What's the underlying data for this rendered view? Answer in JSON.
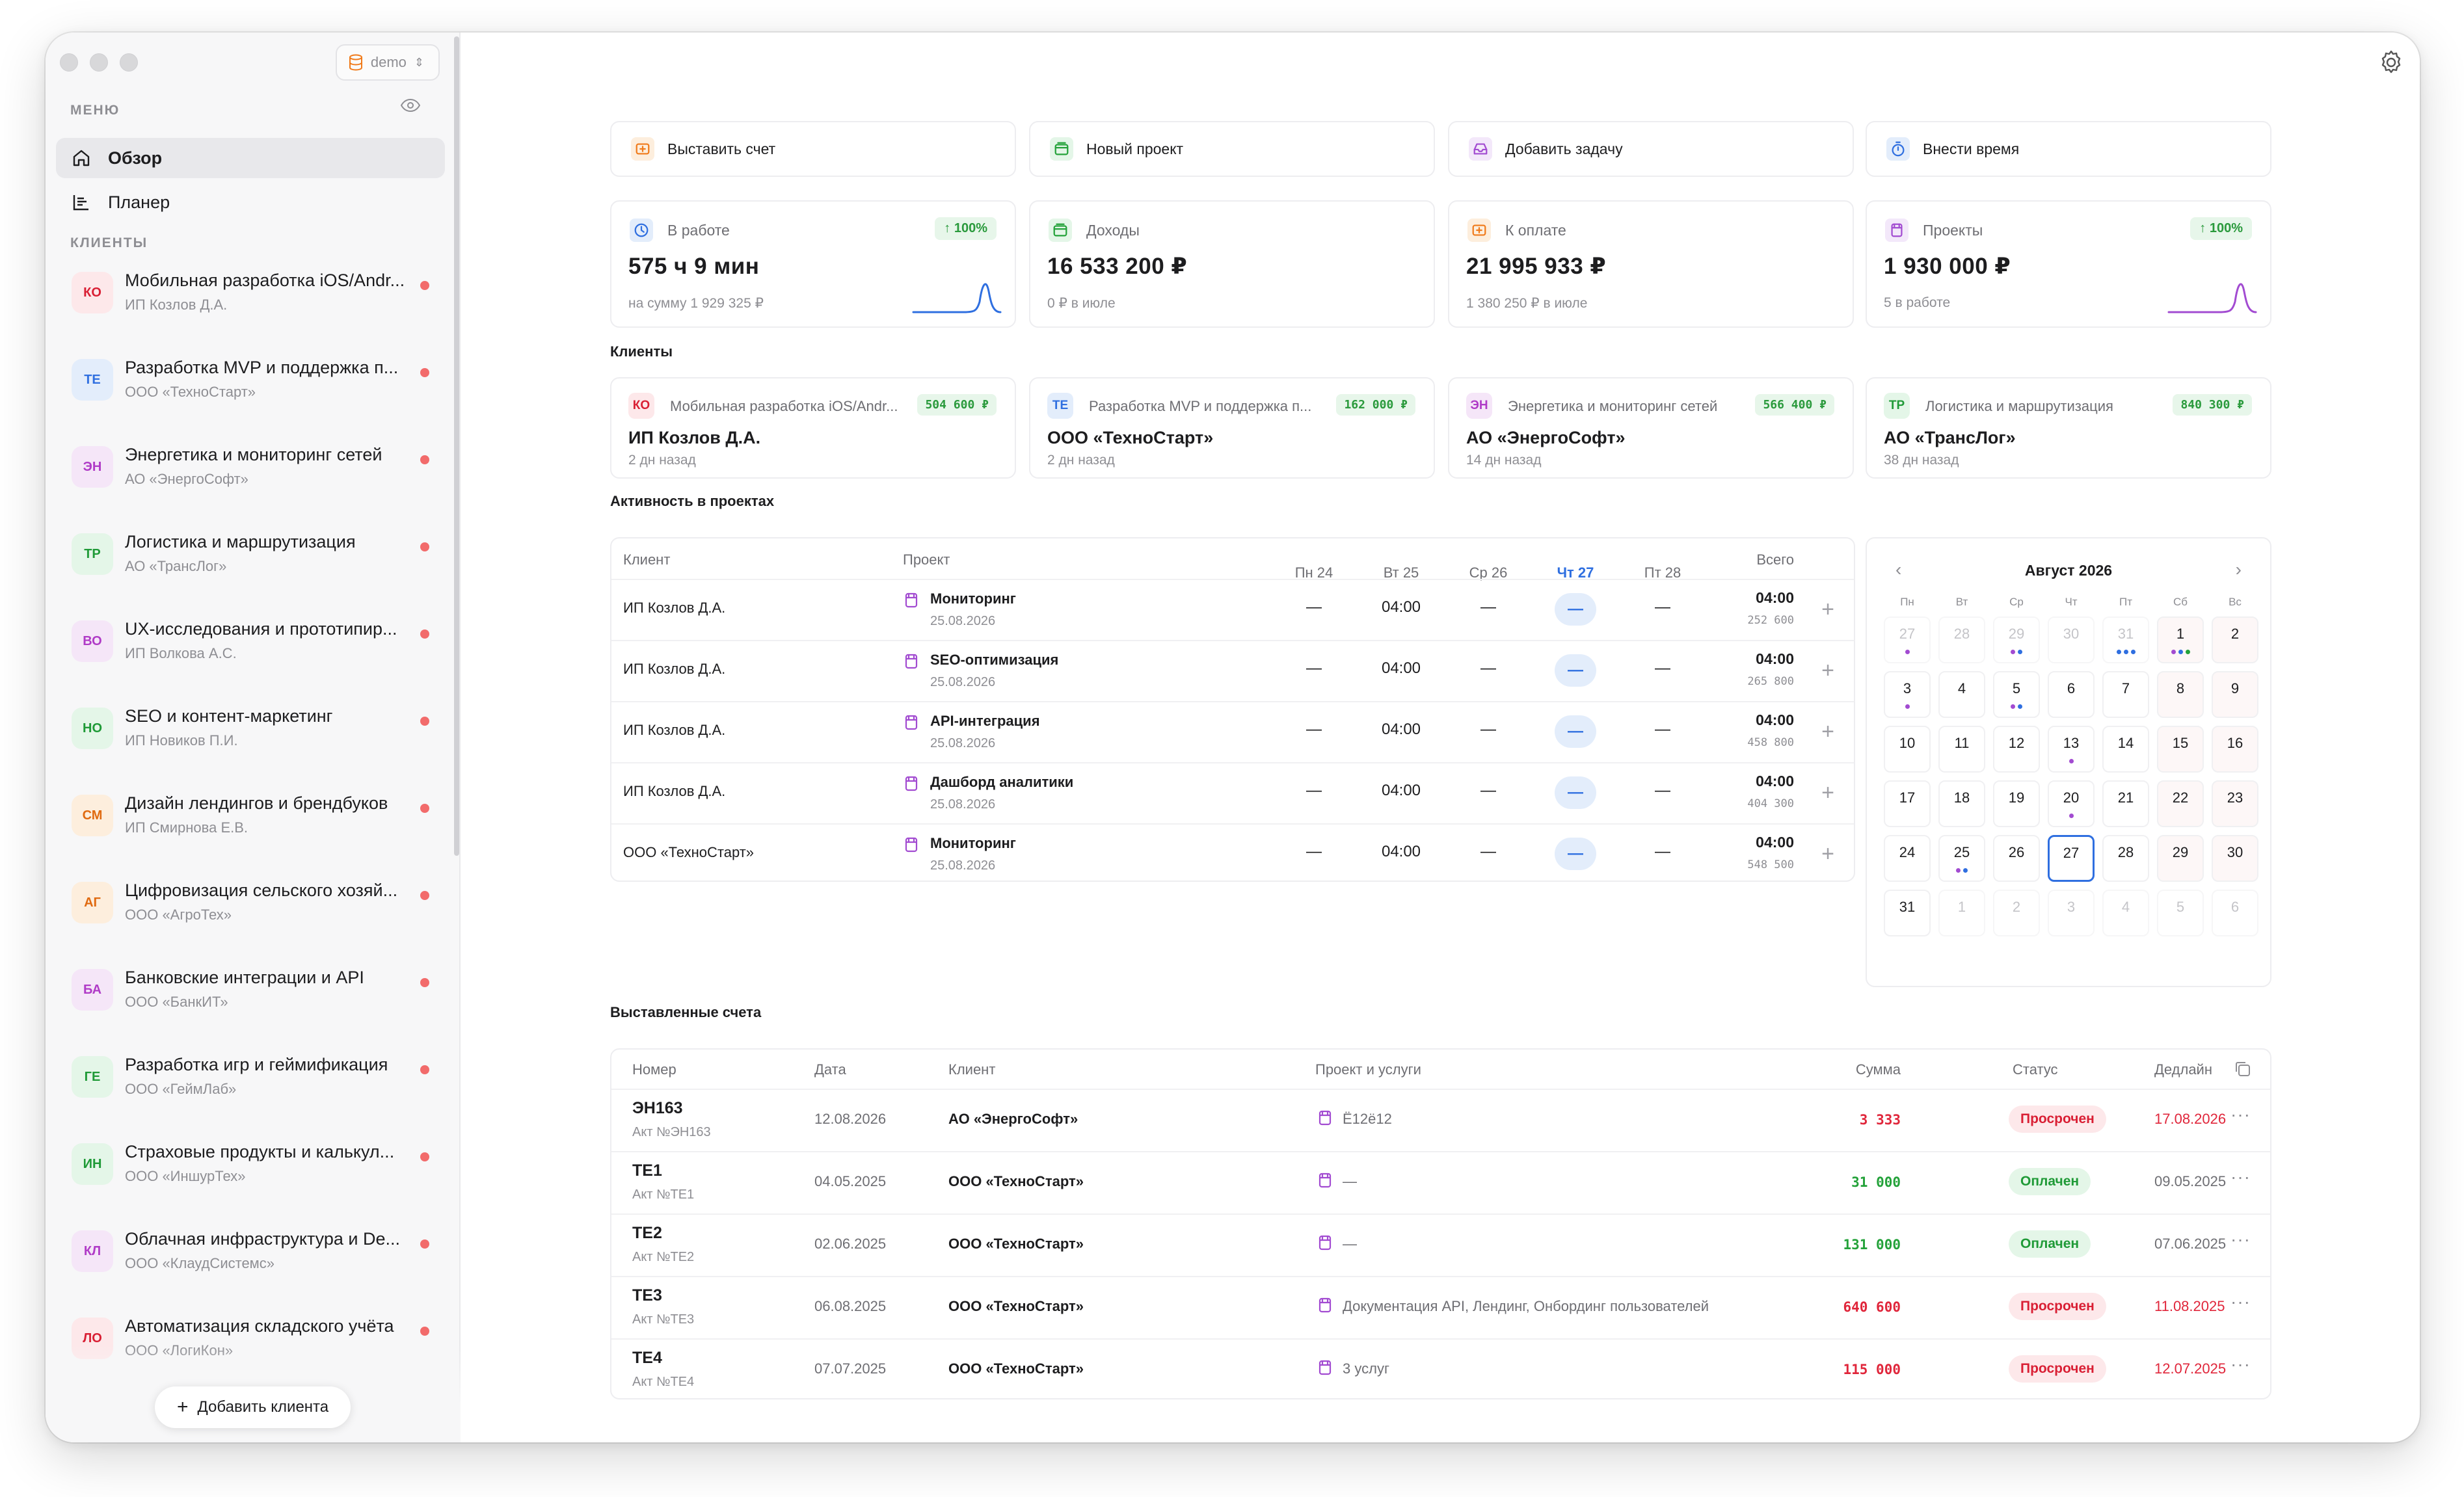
{
  "app": {
    "workspace": "demo"
  },
  "sidebar": {
    "menu_label": "МЕНЮ",
    "nav": [
      {
        "label": "Обзор",
        "icon": "home-icon",
        "active": true
      },
      {
        "label": "Планер",
        "icon": "planner-icon",
        "active": false
      }
    ],
    "clients_label": "КЛИЕНТЫ",
    "clients": [
      {
        "initials": "КО",
        "name": "Мобильная разработка iOS/Andr...",
        "org": "ИП Козлов Д.А.",
        "bg": "#fde8ea",
        "fg": "#d91f34"
      },
      {
        "initials": "ТЕ",
        "name": "Разработка MVP и поддержка п...",
        "org": "ООО «ТехноСтарт»",
        "bg": "#e3edfb",
        "fg": "#2f6fe0"
      },
      {
        "initials": "ЭН",
        "name": "Энергетика и мониторинг сетей",
        "org": "АО «ЭнергоСофт»",
        "bg": "#f5e6f8",
        "fg": "#b03bc7"
      },
      {
        "initials": "ТР",
        "name": "Логистика и маршрутизация",
        "org": "АО «ТрансЛог»",
        "bg": "#e4f6e8",
        "fg": "#1f9a37"
      },
      {
        "initials": "ВО",
        "name": "UX-исследования и прототипир...",
        "org": "ИП Волкова А.С.",
        "bg": "#f5e6f8",
        "fg": "#b03bc7"
      },
      {
        "initials": "НО",
        "name": "SEO и контент-маркетинг",
        "org": "ИП Новиков П.И.",
        "bg": "#e4f6e8",
        "fg": "#1f9a37"
      },
      {
        "initials": "СМ",
        "name": "Дизайн лендингов и брендбуков",
        "org": "ИП Смирнова Е.В.",
        "bg": "#fdeedd",
        "fg": "#e06a10"
      },
      {
        "initials": "АГ",
        "name": "Цифровизация сельского хозяй...",
        "org": "ООО «АгроТех»",
        "bg": "#fdeedd",
        "fg": "#e06a10"
      },
      {
        "initials": "БА",
        "name": "Банковские интеграции и API",
        "org": "ООО «БанкИТ»",
        "bg": "#f5e6f8",
        "fg": "#b03bc7"
      },
      {
        "initials": "ГЕ",
        "name": "Разработка игр и геймификация",
        "org": "ООО «ГеймЛаб»",
        "bg": "#e4f6e8",
        "fg": "#1f9a37"
      },
      {
        "initials": "ИН",
        "name": "Страховые продукты и калькул...",
        "org": "ООО «ИншурТех»",
        "bg": "#e4f6e8",
        "fg": "#1f9a37"
      },
      {
        "initials": "КЛ",
        "name": "Облачная инфраструктура и De...",
        "org": "ООО «КлаудСистемс»",
        "bg": "#f5e6f8",
        "fg": "#b03bc7"
      },
      {
        "initials": "ЛО",
        "name": "Автоматизация складского учёта",
        "org": "ООО «ЛогиКон»",
        "bg": "#fde8ea",
        "fg": "#d91f34"
      }
    ],
    "add_client_label": "Добавить клиента"
  },
  "quick_actions": [
    {
      "label": "Выставить счет",
      "icon": "invoice-icon",
      "color": "#f07a1a",
      "bg": "#fdeedd"
    },
    {
      "label": "Новый проект",
      "icon": "wallet-icon",
      "color": "#24a23a",
      "bg": "#e4f6e8"
    },
    {
      "label": "Добавить задачу",
      "icon": "inbox-icon",
      "color": "#a24bd1",
      "bg": "#f3e8fa"
    },
    {
      "label": "Внести время",
      "icon": "stopwatch-icon",
      "color": "#2f6fe0",
      "bg": "#e3edfb"
    }
  ],
  "stats": [
    {
      "label": "В работе",
      "value": "575 ч 9 мин",
      "sub": "на сумму 1 929 325 ₽",
      "badge": "↑ 100%",
      "icon": "clock-icon",
      "color": "#2f6fe0",
      "bg": "#e3edfb",
      "spark_color": "#2f6fe0"
    },
    {
      "label": "Доходы",
      "value": "16 533 200 ₽",
      "sub": "0 ₽ в июле",
      "badge": "",
      "icon": "wallet-icon",
      "color": "#24a23a",
      "bg": "#e4f6e8",
      "spark_color": ""
    },
    {
      "label": "К оплате",
      "value": "21 995 933 ₽",
      "sub": "1 380 250 ₽ в июле",
      "badge": "",
      "icon": "invoice-icon",
      "color": "#f07a1a",
      "bg": "#fdeedd",
      "spark_color": ""
    },
    {
      "label": "Проекты",
      "value": "1 930 000 ₽",
      "sub": "5 в работе",
      "badge": "↑ 100%",
      "icon": "folder-icon",
      "color": "#a24bd1",
      "bg": "#f3e8fa",
      "spark_color": "#a24bd1"
    }
  ],
  "clients_section": {
    "title": "Клиенты",
    "cards": [
      {
        "initials": "КО",
        "project": "Мобильная разработка iOS/Andr...",
        "amount": "504 600 ₽",
        "name": "ИП Козлов Д.А.",
        "ago": "2 дн назад",
        "bg": "#fde8ea",
        "fg": "#d91f34"
      },
      {
        "initials": "ТЕ",
        "project": "Разработка MVP и поддержка п...",
        "amount": "162 000 ₽",
        "name": "ООО «ТехноСтарт»",
        "ago": "2 дн назад",
        "bg": "#e3edfb",
        "fg": "#2f6fe0"
      },
      {
        "initials": "ЭН",
        "project": "Энергетика и мониторинг сетей",
        "amount": "566 400 ₽",
        "name": "АО «ЭнергоСофт»",
        "ago": "14 дн назад",
        "bg": "#f5e6f8",
        "fg": "#b03bc7"
      },
      {
        "initials": "ТР",
        "project": "Логистика и маршрутизация",
        "amount": "840 300 ₽",
        "name": "АО «ТрансЛог»",
        "ago": "38 дн назад",
        "bg": "#e4f6e8",
        "fg": "#1f9a37"
      }
    ]
  },
  "activity": {
    "title": "Активность в проектах",
    "headers": {
      "client": "Клиент",
      "project": "Проект",
      "total": "Всего"
    },
    "days": [
      "Пн 24",
      "Вт 25",
      "Ср 26",
      "Чт 27",
      "Пт 28"
    ],
    "today_index": 3,
    "rows": [
      {
        "client": "ИП Козлов Д.А.",
        "project": "Мониторинг",
        "date": "25.08.2026",
        "cells": [
          "—",
          "04:00",
          "—",
          "—",
          "—"
        ],
        "total": "04:00",
        "total_sum": "252 600"
      },
      {
        "client": "ИП Козлов Д.А.",
        "project": "SEO-оптимизация",
        "date": "25.08.2026",
        "cells": [
          "—",
          "04:00",
          "—",
          "—",
          "—"
        ],
        "total": "04:00",
        "total_sum": "265 800"
      },
      {
        "client": "ИП Козлов Д.А.",
        "project": "API-интеграция",
        "date": "25.08.2026",
        "cells": [
          "—",
          "04:00",
          "—",
          "—",
          "—"
        ],
        "total": "04:00",
        "total_sum": "458 800"
      },
      {
        "client": "ИП Козлов Д.А.",
        "project": "Дашборд аналитики",
        "date": "25.08.2026",
        "cells": [
          "—",
          "04:00",
          "—",
          "—",
          "—"
        ],
        "total": "04:00",
        "total_sum": "404 300"
      },
      {
        "client": "ООО «ТехноСтарт»",
        "project": "Мониторинг",
        "date": "25.08.2026",
        "cells": [
          "—",
          "04:00",
          "—",
          "—",
          "—"
        ],
        "total": "04:00",
        "total_sum": "548 500"
      }
    ]
  },
  "calendar": {
    "title": "Август 2026",
    "dows": [
      "Пн",
      "Вт",
      "Ср",
      "Чт",
      "Пт",
      "Сб",
      "Вс"
    ],
    "today": "27",
    "weeks": [
      [
        {
          "d": "27",
          "m": true,
          "dots": [
            "#a24bd1"
          ]
        },
        {
          "d": "28",
          "m": true,
          "dots": []
        },
        {
          "d": "29",
          "m": true,
          "dots": [
            "#a24bd1",
            "#2f6fe0"
          ]
        },
        {
          "d": "30",
          "m": true,
          "dots": []
        },
        {
          "d": "31",
          "m": true,
          "dots": [
            "#2f6fe0",
            "#2f6fe0",
            "#2f6fe0"
          ]
        },
        {
          "d": "1",
          "m": false,
          "dots": [
            "#a24bd1",
            "#2f6fe0",
            "#24a23a"
          ]
        },
        {
          "d": "2",
          "m": false,
          "dots": []
        }
      ],
      [
        {
          "d": "3",
          "m": false,
          "dots": [
            "#a24bd1"
          ]
        },
        {
          "d": "4",
          "m": false,
          "dots": []
        },
        {
          "d": "5",
          "m": false,
          "dots": [
            "#a24bd1",
            "#2f6fe0"
          ]
        },
        {
          "d": "6",
          "m": false,
          "dots": []
        },
        {
          "d": "7",
          "m": false,
          "dots": []
        },
        {
          "d": "8",
          "m": false,
          "dots": []
        },
        {
          "d": "9",
          "m": false,
          "dots": []
        }
      ],
      [
        {
          "d": "10",
          "m": false,
          "dots": []
        },
        {
          "d": "11",
          "m": false,
          "dots": []
        },
        {
          "d": "12",
          "m": false,
          "dots": []
        },
        {
          "d": "13",
          "m": false,
          "dots": [
            "#a24bd1"
          ]
        },
        {
          "d": "14",
          "m": false,
          "dots": []
        },
        {
          "d": "15",
          "m": false,
          "dots": []
        },
        {
          "d": "16",
          "m": false,
          "dots": []
        }
      ],
      [
        {
          "d": "17",
          "m": false,
          "dots": []
        },
        {
          "d": "18",
          "m": false,
          "dots": []
        },
        {
          "d": "19",
          "m": false,
          "dots": []
        },
        {
          "d": "20",
          "m": false,
          "dots": [
            "#a24bd1"
          ]
        },
        {
          "d": "21",
          "m": false,
          "dots": []
        },
        {
          "d": "22",
          "m": false,
          "dots": []
        },
        {
          "d": "23",
          "m": false,
          "dots": []
        }
      ],
      [
        {
          "d": "24",
          "m": false,
          "dots": []
        },
        {
          "d": "25",
          "m": false,
          "dots": [
            "#a24bd1",
            "#2f6fe0"
          ]
        },
        {
          "d": "26",
          "m": false,
          "dots": []
        },
        {
          "d": "27",
          "m": false,
          "dots": []
        },
        {
          "d": "28",
          "m": false,
          "dots": []
        },
        {
          "d": "29",
          "m": false,
          "dots": []
        },
        {
          "d": "30",
          "m": false,
          "dots": []
        }
      ],
      [
        {
          "d": "31",
          "m": false,
          "dots": []
        },
        {
          "d": "1",
          "m": true,
          "dots": []
        },
        {
          "d": "2",
          "m": true,
          "dots": []
        },
        {
          "d": "3",
          "m": true,
          "dots": []
        },
        {
          "d": "4",
          "m": true,
          "dots": []
        },
        {
          "d": "5",
          "m": true,
          "dots": []
        },
        {
          "d": "6",
          "m": true,
          "dots": []
        }
      ]
    ]
  },
  "invoices": {
    "title": "Выставленные счета",
    "headers": {
      "number": "Номер",
      "date": "Дата",
      "client": "Клиент",
      "project": "Проект и услуги",
      "sum": "Сумма",
      "status": "Статус",
      "deadline": "Дедлайн"
    },
    "rows": [
      {
        "number": "ЭН163",
        "act": "Акт №ЭН163",
        "date": "12.08.2026",
        "client": "АО «ЭнергоСофт»",
        "services": "Ё12ё12",
        "sum": "3 333",
        "sum_color": "red",
        "status": "Просрочен",
        "status_kind": "overdue",
        "deadline": "17.08.2026",
        "deadline_color": "red"
      },
      {
        "number": "ТЕ1",
        "act": "Акт №ТЕ1",
        "date": "04.05.2025",
        "client": "ООО «ТехноСтарт»",
        "services": "—",
        "sum": "31 000",
        "sum_color": "green",
        "status": "Оплачен",
        "status_kind": "paid",
        "deadline": "09.05.2025",
        "deadline_color": ""
      },
      {
        "number": "ТЕ2",
        "act": "Акт №ТЕ2",
        "date": "02.06.2025",
        "client": "ООО «ТехноСтарт»",
        "services": "—",
        "sum": "131 000",
        "sum_color": "green",
        "status": "Оплачен",
        "status_kind": "paid",
        "deadline": "07.06.2025",
        "deadline_color": ""
      },
      {
        "number": "ТЕ3",
        "act": "Акт №ТЕ3",
        "date": "06.08.2025",
        "client": "ООО «ТехноСтарт»",
        "services": "Документация API, Лендинг, Онбординг пользователей",
        "sum": "640 600",
        "sum_color": "red",
        "status": "Просрочен",
        "status_kind": "overdue",
        "deadline": "11.08.2025",
        "deadline_color": "red"
      },
      {
        "number": "ТЕ4",
        "act": "Акт №ТЕ4",
        "date": "07.07.2025",
        "client": "ООО «ТехноСтарт»",
        "services": "3 услуг",
        "sum": "115 000",
        "sum_color": "red",
        "status": "Просрочен",
        "status_kind": "overdue",
        "deadline": "12.07.2025",
        "deadline_color": "red"
      }
    ]
  }
}
